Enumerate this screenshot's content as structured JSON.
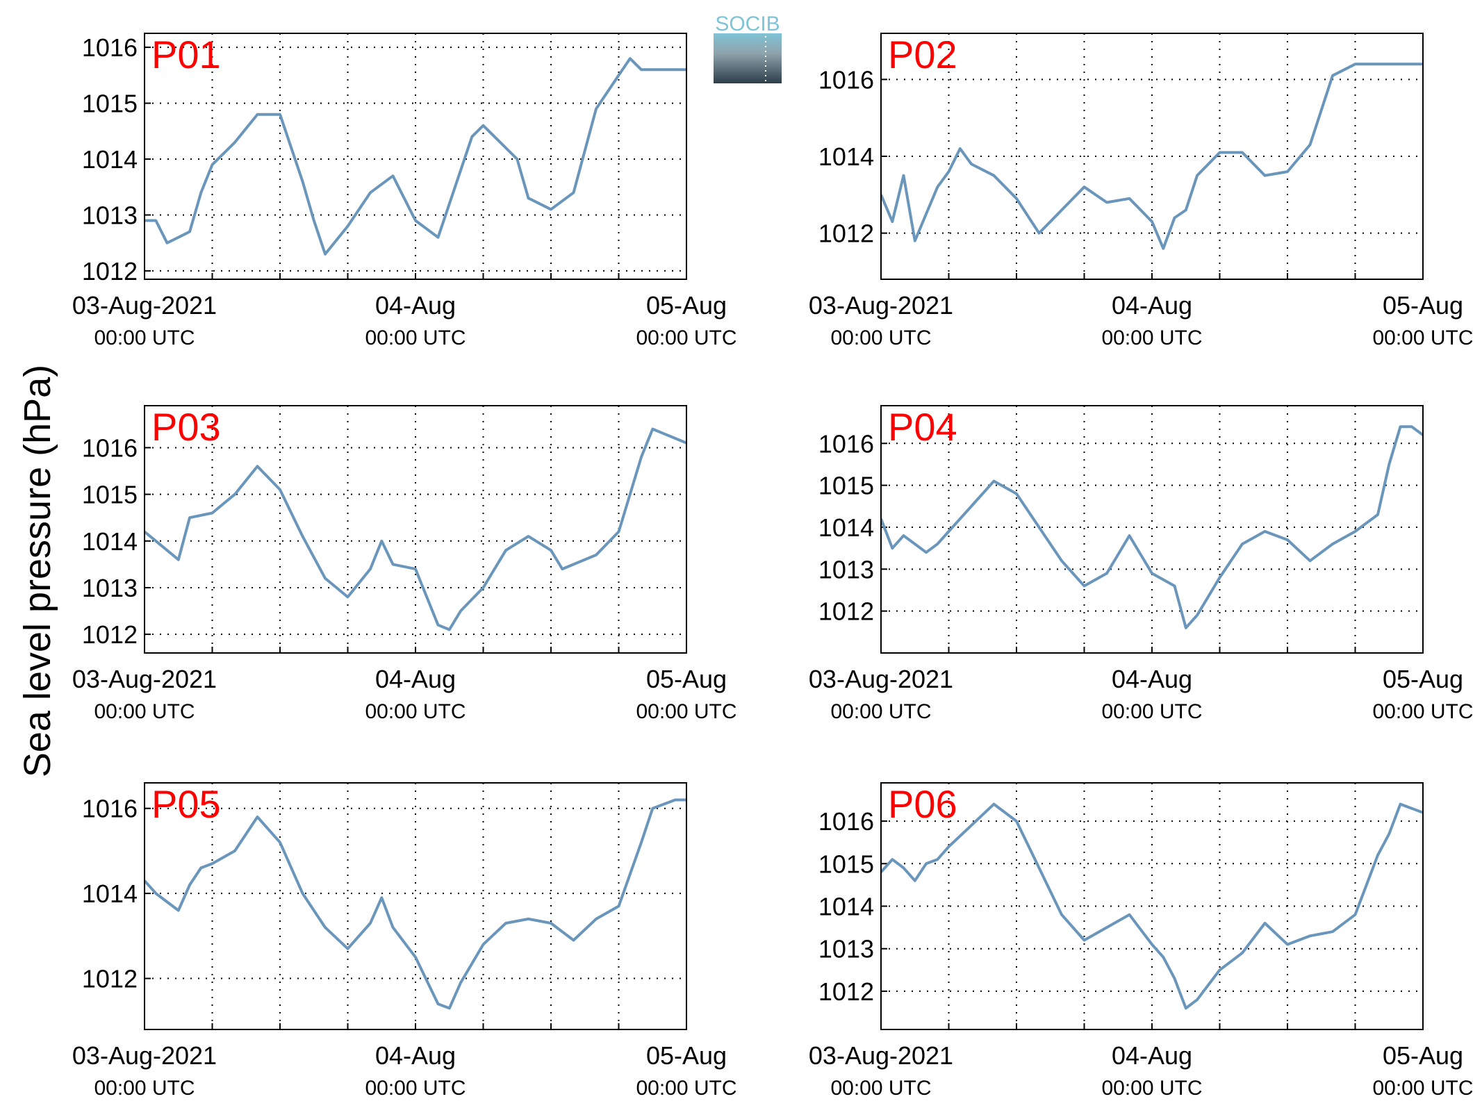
{
  "ylabel": "Sea level pressure (hPa)",
  "logo": {
    "text": "SOCIB",
    "color_top": "#7fc3d6",
    "color_bottom": "#2c3e4a"
  },
  "colors": {
    "line": "#6a96bb",
    "panel_label": "#ff0000",
    "grid": "#000000"
  },
  "xaxis": {
    "range": [
      "2021-08-03T00:00Z",
      "2021-08-05T00:00Z"
    ],
    "grid_interval_hours": 6,
    "ticks": [
      {
        "value": "2021-08-03T00:00Z",
        "label": "03-Aug-2021",
        "sublabel": "00:00 UTC"
      },
      {
        "value": "2021-08-04T00:00Z",
        "label": "04-Aug",
        "sublabel": "00:00 UTC"
      },
      {
        "value": "2021-08-05T00:00Z",
        "label": "05-Aug",
        "sublabel": "00:00 UTC"
      }
    ]
  },
  "chart_data": [
    {
      "type": "line",
      "label": "P01",
      "ylim": [
        1011.85,
        1016.25
      ],
      "yticks": [
        1012,
        1013,
        1014,
        1015,
        1016
      ],
      "t": [
        "2021-08-03T00:00Z",
        "2021-08-03T01:00Z",
        "2021-08-03T02:00Z",
        "2021-08-03T03:00Z",
        "2021-08-03T04:00Z",
        "2021-08-03T05:00Z",
        "2021-08-03T06:00Z",
        "2021-08-03T08:00Z",
        "2021-08-03T10:00Z",
        "2021-08-03T12:00Z",
        "2021-08-03T14:00Z",
        "2021-08-03T15:00Z",
        "2021-08-03T16:00Z",
        "2021-08-03T18:00Z",
        "2021-08-03T20:00Z",
        "2021-08-03T22:00Z",
        "2021-08-04T00:00Z",
        "2021-08-04T02:00Z",
        "2021-08-04T03:00Z",
        "2021-08-04T05:00Z",
        "2021-08-04T06:00Z",
        "2021-08-04T07:00Z",
        "2021-08-04T09:00Z",
        "2021-08-04T10:00Z",
        "2021-08-04T12:00Z",
        "2021-08-04T14:00Z",
        "2021-08-04T16:00Z",
        "2021-08-04T18:00Z",
        "2021-08-04T19:00Z",
        "2021-08-04T20:00Z",
        "2021-08-04T21:00Z",
        "2021-08-04T22:00Z",
        "2021-08-04T23:00Z",
        "2021-08-05T00:00Z"
      ],
      "v": [
        1012.9,
        1012.9,
        1012.5,
        1012.6,
        1012.7,
        1013.4,
        1013.9,
        1014.3,
        1014.8,
        1014.8,
        1013.6,
        1012.9,
        1012.3,
        1012.8,
        1013.4,
        1013.7,
        1012.9,
        1012.6,
        1013.2,
        1014.4,
        1014.6,
        1014.4,
        1014.0,
        1013.3,
        1013.1,
        1013.4,
        1014.9,
        1015.5,
        1015.8,
        1015.6,
        1015.6,
        1015.6,
        1015.6,
        1015.6
      ]
    },
    {
      "type": "line",
      "label": "P02",
      "ylim": [
        1010.8,
        1017.2
      ],
      "yticks": [
        1012,
        1014,
        1016
      ],
      "t": [
        "2021-08-03T00:00Z",
        "2021-08-03T01:00Z",
        "2021-08-03T02:00Z",
        "2021-08-03T03:00Z",
        "2021-08-03T04:00Z",
        "2021-08-03T05:00Z",
        "2021-08-03T06:00Z",
        "2021-08-03T07:00Z",
        "2021-08-03T08:00Z",
        "2021-08-03T10:00Z",
        "2021-08-03T12:00Z",
        "2021-08-03T14:00Z",
        "2021-08-03T16:00Z",
        "2021-08-03T18:00Z",
        "2021-08-03T20:00Z",
        "2021-08-03T22:00Z",
        "2021-08-04T00:00Z",
        "2021-08-04T01:00Z",
        "2021-08-04T02:00Z",
        "2021-08-04T03:00Z",
        "2021-08-04T04:00Z",
        "2021-08-04T06:00Z",
        "2021-08-04T08:00Z",
        "2021-08-04T10:00Z",
        "2021-08-04T12:00Z",
        "2021-08-04T14:00Z",
        "2021-08-04T16:00Z",
        "2021-08-04T18:00Z",
        "2021-08-04T20:00Z",
        "2021-08-04T22:00Z",
        "2021-08-04T23:00Z",
        "2021-08-05T00:00Z"
      ],
      "v": [
        1013.0,
        1012.3,
        1013.5,
        1011.8,
        1012.5,
        1013.2,
        1013.6,
        1014.2,
        1013.8,
        1013.5,
        1012.9,
        1012.0,
        1012.6,
        1013.2,
        1012.8,
        1012.9,
        1012.3,
        1011.6,
        1012.4,
        1012.6,
        1013.5,
        1014.1,
        1014.1,
        1013.5,
        1013.6,
        1014.3,
        1016.1,
        1016.4,
        1016.4,
        1016.4,
        1016.4,
        1016.4
      ]
    },
    {
      "type": "line",
      "label": "P03",
      "ylim": [
        1011.6,
        1016.9
      ],
      "yticks": [
        1012,
        1013,
        1014,
        1015,
        1016
      ],
      "t": [
        "2021-08-03T00:00Z",
        "2021-08-03T01:00Z",
        "2021-08-03T02:00Z",
        "2021-08-03T03:00Z",
        "2021-08-03T04:00Z",
        "2021-08-03T06:00Z",
        "2021-08-03T08:00Z",
        "2021-08-03T10:00Z",
        "2021-08-03T12:00Z",
        "2021-08-03T14:00Z",
        "2021-08-03T16:00Z",
        "2021-08-03T18:00Z",
        "2021-08-03T20:00Z",
        "2021-08-03T21:00Z",
        "2021-08-03T22:00Z",
        "2021-08-04T00:00Z",
        "2021-08-04T02:00Z",
        "2021-08-04T03:00Z",
        "2021-08-04T04:00Z",
        "2021-08-04T06:00Z",
        "2021-08-04T08:00Z",
        "2021-08-04T10:00Z",
        "2021-08-04T12:00Z",
        "2021-08-04T13:00Z",
        "2021-08-04T14:00Z",
        "2021-08-04T16:00Z",
        "2021-08-04T18:00Z",
        "2021-08-04T20:00Z",
        "2021-08-04T21:00Z",
        "2021-08-04T22:00Z",
        "2021-08-04T23:00Z",
        "2021-08-05T00:00Z"
      ],
      "v": [
        1014.2,
        1014.0,
        1013.8,
        1013.6,
        1014.5,
        1014.6,
        1015.0,
        1015.6,
        1015.1,
        1014.1,
        1013.2,
        1012.8,
        1013.4,
        1014.0,
        1013.5,
        1013.4,
        1012.2,
        1012.1,
        1012.5,
        1013.0,
        1013.8,
        1014.1,
        1013.8,
        1013.4,
        1013.5,
        1013.7,
        1014.2,
        1015.8,
        1016.4,
        1016.3,
        1016.2,
        1016.1
      ]
    },
    {
      "type": "line",
      "label": "P04",
      "ylim": [
        1011.0,
        1016.9
      ],
      "yticks": [
        1012,
        1013,
        1014,
        1015,
        1016
      ],
      "t": [
        "2021-08-03T00:00Z",
        "2021-08-03T01:00Z",
        "2021-08-03T02:00Z",
        "2021-08-03T03:00Z",
        "2021-08-03T04:00Z",
        "2021-08-03T05:00Z",
        "2021-08-03T06:00Z",
        "2021-08-03T08:00Z",
        "2021-08-03T10:00Z",
        "2021-08-03T12:00Z",
        "2021-08-03T14:00Z",
        "2021-08-03T16:00Z",
        "2021-08-03T18:00Z",
        "2021-08-03T20:00Z",
        "2021-08-03T22:00Z",
        "2021-08-04T00:00Z",
        "2021-08-04T02:00Z",
        "2021-08-04T03:00Z",
        "2021-08-04T04:00Z",
        "2021-08-04T06:00Z",
        "2021-08-04T08:00Z",
        "2021-08-04T10:00Z",
        "2021-08-04T12:00Z",
        "2021-08-04T14:00Z",
        "2021-08-04T16:00Z",
        "2021-08-04T18:00Z",
        "2021-08-04T20:00Z",
        "2021-08-04T21:00Z",
        "2021-08-04T22:00Z",
        "2021-08-04T23:00Z",
        "2021-08-05T00:00Z"
      ],
      "v": [
        1014.2,
        1013.5,
        1013.8,
        1013.6,
        1013.4,
        1013.6,
        1013.9,
        1014.5,
        1015.1,
        1014.8,
        1014.0,
        1013.2,
        1012.6,
        1012.9,
        1013.8,
        1012.9,
        1012.6,
        1011.6,
        1011.9,
        1012.8,
        1013.6,
        1013.9,
        1013.7,
        1013.2,
        1013.6,
        1013.9,
        1014.3,
        1015.5,
        1016.4,
        1016.4,
        1016.2
      ]
    },
    {
      "type": "line",
      "label": "P05",
      "ylim": [
        1010.8,
        1016.6
      ],
      "yticks": [
        1012,
        1014,
        1016
      ],
      "t": [
        "2021-08-03T00:00Z",
        "2021-08-03T01:00Z",
        "2021-08-03T02:00Z",
        "2021-08-03T03:00Z",
        "2021-08-03T04:00Z",
        "2021-08-03T05:00Z",
        "2021-08-03T06:00Z",
        "2021-08-03T08:00Z",
        "2021-08-03T10:00Z",
        "2021-08-03T12:00Z",
        "2021-08-03T14:00Z",
        "2021-08-03T16:00Z",
        "2021-08-03T18:00Z",
        "2021-08-03T20:00Z",
        "2021-08-03T21:00Z",
        "2021-08-03T22:00Z",
        "2021-08-04T00:00Z",
        "2021-08-04T02:00Z",
        "2021-08-04T03:00Z",
        "2021-08-04T04:00Z",
        "2021-08-04T06:00Z",
        "2021-08-04T08:00Z",
        "2021-08-04T10:00Z",
        "2021-08-04T12:00Z",
        "2021-08-04T14:00Z",
        "2021-08-04T16:00Z",
        "2021-08-04T18:00Z",
        "2021-08-04T20:00Z",
        "2021-08-04T21:00Z",
        "2021-08-04T22:00Z",
        "2021-08-04T23:00Z",
        "2021-08-05T00:00Z"
      ],
      "v": [
        1014.3,
        1014.0,
        1013.8,
        1013.6,
        1014.2,
        1014.6,
        1014.7,
        1015.0,
        1015.8,
        1015.2,
        1014.0,
        1013.2,
        1012.7,
        1013.3,
        1013.9,
        1013.2,
        1012.5,
        1011.4,
        1011.3,
        1011.9,
        1012.8,
        1013.3,
        1013.4,
        1013.3,
        1012.9,
        1013.4,
        1013.7,
        1015.2,
        1016.0,
        1016.1,
        1016.2,
        1016.2
      ]
    },
    {
      "type": "line",
      "label": "P06",
      "ylim": [
        1011.1,
        1016.9
      ],
      "yticks": [
        1012,
        1013,
        1014,
        1015,
        1016
      ],
      "t": [
        "2021-08-03T00:00Z",
        "2021-08-03T01:00Z",
        "2021-08-03T02:00Z",
        "2021-08-03T03:00Z",
        "2021-08-03T04:00Z",
        "2021-08-03T05:00Z",
        "2021-08-03T06:00Z",
        "2021-08-03T08:00Z",
        "2021-08-03T10:00Z",
        "2021-08-03T12:00Z",
        "2021-08-03T14:00Z",
        "2021-08-03T16:00Z",
        "2021-08-03T18:00Z",
        "2021-08-03T20:00Z",
        "2021-08-03T22:00Z",
        "2021-08-04T00:00Z",
        "2021-08-04T01:00Z",
        "2021-08-04T02:00Z",
        "2021-08-04T03:00Z",
        "2021-08-04T04:00Z",
        "2021-08-04T06:00Z",
        "2021-08-04T08:00Z",
        "2021-08-04T10:00Z",
        "2021-08-04T12:00Z",
        "2021-08-04T14:00Z",
        "2021-08-04T16:00Z",
        "2021-08-04T18:00Z",
        "2021-08-04T20:00Z",
        "2021-08-04T21:00Z",
        "2021-08-04T22:00Z",
        "2021-08-04T23:00Z",
        "2021-08-05T00:00Z"
      ],
      "v": [
        1014.8,
        1015.1,
        1014.9,
        1014.6,
        1015.0,
        1015.1,
        1015.4,
        1015.9,
        1016.4,
        1016.0,
        1014.9,
        1013.8,
        1013.2,
        1013.5,
        1013.8,
        1013.1,
        1012.8,
        1012.3,
        1011.6,
        1011.8,
        1012.5,
        1012.9,
        1013.6,
        1013.1,
        1013.3,
        1013.4,
        1013.8,
        1015.2,
        1015.7,
        1016.4,
        1016.3,
        1016.2
      ]
    }
  ]
}
